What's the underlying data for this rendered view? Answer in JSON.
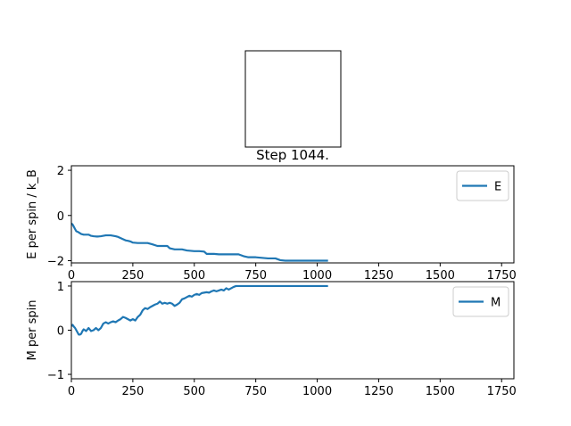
{
  "title": "Step 1044.",
  "colors": {
    "series": "#1f77b4",
    "axes": "#000000",
    "legend_border": "#cccccc"
  },
  "chart_data": [
    {
      "type": "line",
      "xlabel": "",
      "ylabel": "E per spin / k_B",
      "xlim": [
        0,
        1800
      ],
      "ylim": [
        -2.1,
        2.2
      ],
      "xticks": [
        0,
        250,
        500,
        750,
        1000,
        1250,
        1500,
        1750
      ],
      "yticks": [
        -2,
        0,
        2
      ],
      "legend": "upper right",
      "grid": false,
      "series": [
        {
          "name": "E",
          "x": [
            0,
            5,
            10,
            15,
            20,
            25,
            30,
            40,
            50,
            60,
            70,
            80,
            90,
            100,
            110,
            120,
            130,
            140,
            150,
            160,
            170,
            180,
            190,
            200,
            210,
            220,
            230,
            240,
            250,
            270,
            290,
            310,
            330,
            350,
            360,
            390,
            400,
            420,
            450,
            470,
            500,
            520,
            540,
            550,
            580,
            600,
            650,
            680,
            700,
            720,
            750,
            780,
            800,
            830,
            850,
            870,
            900,
            950,
            1000,
            1044
          ],
          "y": [
            -0.35,
            -0.4,
            -0.5,
            -0.6,
            -0.7,
            -0.72,
            -0.75,
            -0.82,
            -0.85,
            -0.85,
            -0.85,
            -0.9,
            -0.92,
            -0.93,
            -0.93,
            -0.92,
            -0.9,
            -0.88,
            -0.88,
            -0.88,
            -0.9,
            -0.92,
            -0.95,
            -1.0,
            -1.05,
            -1.1,
            -1.12,
            -1.15,
            -1.2,
            -1.22,
            -1.22,
            -1.22,
            -1.28,
            -1.35,
            -1.35,
            -1.35,
            -1.45,
            -1.5,
            -1.5,
            -1.55,
            -1.58,
            -1.58,
            -1.6,
            -1.7,
            -1.7,
            -1.72,
            -1.72,
            -1.72,
            -1.8,
            -1.85,
            -1.85,
            -1.88,
            -1.9,
            -1.9,
            -1.98,
            -2.0,
            -2.0,
            -2.0,
            -2.0,
            -2.0
          ]
        }
      ]
    },
    {
      "type": "line",
      "xlabel": "",
      "ylabel": "M per spin",
      "xlim": [
        0,
        1800
      ],
      "ylim": [
        -1.1,
        1.1
      ],
      "xticks": [
        0,
        250,
        500,
        750,
        1000,
        1250,
        1500,
        1750
      ],
      "yticks": [
        -1,
        0,
        1
      ],
      "legend": "upper right",
      "grid": false,
      "series": [
        {
          "name": "M",
          "x": [
            0,
            5,
            10,
            15,
            20,
            25,
            30,
            35,
            40,
            45,
            50,
            60,
            70,
            80,
            90,
            100,
            110,
            120,
            130,
            140,
            150,
            160,
            170,
            180,
            190,
            200,
            210,
            220,
            230,
            240,
            250,
            260,
            270,
            280,
            290,
            300,
            310,
            320,
            330,
            340,
            350,
            360,
            370,
            380,
            390,
            400,
            410,
            420,
            430,
            440,
            450,
            460,
            470,
            480,
            490,
            500,
            510,
            520,
            530,
            540,
            550,
            560,
            570,
            580,
            590,
            600,
            610,
            620,
            630,
            640,
            650,
            660,
            670,
            680,
            700,
            750,
            800,
            850,
            900,
            1000,
            1044
          ],
          "y": [
            0.1,
            0.12,
            0.08,
            0.05,
            0.0,
            -0.05,
            -0.1,
            -0.1,
            -0.08,
            -0.02,
            0.02,
            -0.02,
            0.05,
            -0.02,
            0.0,
            0.05,
            0.0,
            0.05,
            0.15,
            0.18,
            0.15,
            0.18,
            0.2,
            0.18,
            0.22,
            0.25,
            0.3,
            0.28,
            0.25,
            0.22,
            0.25,
            0.22,
            0.3,
            0.35,
            0.45,
            0.5,
            0.48,
            0.52,
            0.55,
            0.58,
            0.6,
            0.65,
            0.6,
            0.62,
            0.6,
            0.62,
            0.6,
            0.55,
            0.58,
            0.62,
            0.7,
            0.72,
            0.75,
            0.78,
            0.76,
            0.8,
            0.82,
            0.8,
            0.84,
            0.85,
            0.86,
            0.85,
            0.88,
            0.9,
            0.88,
            0.9,
            0.92,
            0.9,
            0.95,
            0.92,
            0.95,
            0.98,
            1.0,
            1.0,
            1.0,
            1.0,
            1.0,
            1.0,
            1.0,
            1.0,
            1.0
          ]
        }
      ]
    }
  ]
}
